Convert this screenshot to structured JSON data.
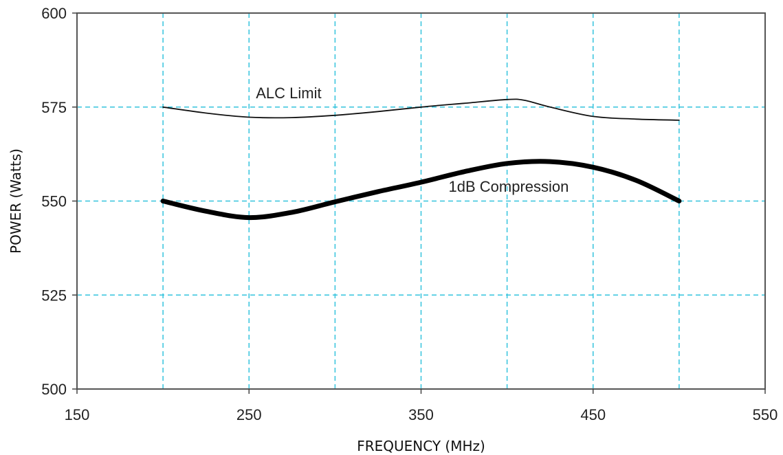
{
  "chart_data": {
    "type": "line",
    "xlabel": "FREQUENCY (MHz)",
    "ylabel": "POWER (Watts)",
    "xlim": [
      150,
      550
    ],
    "ylim": [
      500,
      600
    ],
    "x_ticks": [
      "150",
      "250",
      "350",
      "450",
      "550"
    ],
    "y_ticks": [
      "500",
      "525",
      "550",
      "575",
      "600"
    ],
    "x_grid": [
      200,
      250,
      300,
      350,
      400,
      450,
      500
    ],
    "y_grid": [
      525,
      550,
      575
    ],
    "grid": true,
    "grid_color": "#33c3dd",
    "series": [
      {
        "name": "ALC Limit",
        "color": "#111111",
        "weight": "thin",
        "x": [
          200,
          225,
          250,
          275,
          300,
          325,
          350,
          375,
          400,
          410,
          425,
          450,
          475,
          500
        ],
        "y": [
          575.0,
          573.4,
          572.3,
          572.2,
          572.8,
          573.8,
          575.0,
          576.0,
          577.0,
          576.8,
          575.0,
          572.5,
          571.8,
          571.5
        ]
      },
      {
        "name": "1dB Compression",
        "color": "#000000",
        "weight": "thick",
        "x": [
          200,
          225,
          250,
          275,
          300,
          325,
          350,
          375,
          400,
          425,
          450,
          475,
          500
        ],
        "y": [
          550.0,
          547.3,
          545.6,
          547.0,
          549.8,
          552.5,
          555.0,
          557.8,
          560.0,
          560.5,
          559.0,
          555.5,
          550.0
        ]
      }
    ]
  }
}
